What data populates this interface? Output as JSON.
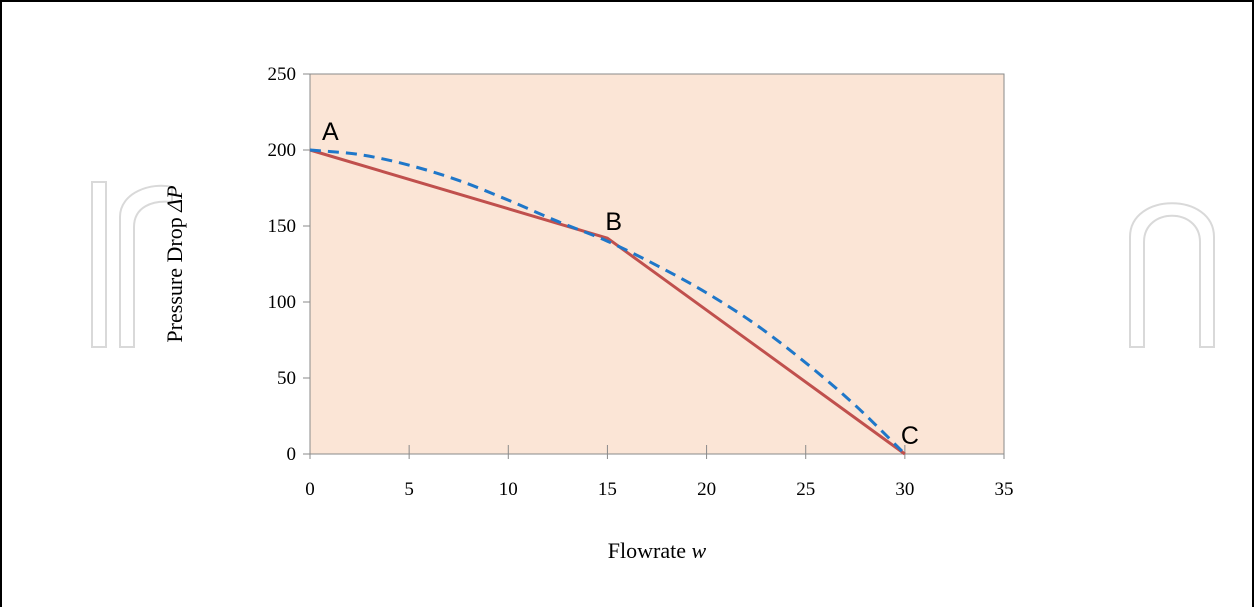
{
  "chart_data": {
    "type": "line",
    "xlabel_text": "Flowrate ",
    "xlabel_var": "w",
    "ylabel_text": "Pressure Drop ",
    "ylabel_var": "ΔP",
    "xlim": [
      0,
      35
    ],
    "ylim": [
      0,
      250
    ],
    "x_ticks": [
      0,
      5,
      10,
      15,
      20,
      25,
      30,
      35
    ],
    "y_ticks": [
      0,
      50,
      100,
      150,
      200,
      250
    ],
    "grid": false,
    "plot_background": "#fbe5d6",
    "series": [
      {
        "style": "solid",
        "color": "#c0504d",
        "points": [
          [
            0,
            200
          ],
          [
            15,
            142
          ],
          [
            30,
            0
          ]
        ]
      },
      {
        "style": "dashed",
        "color": "#1f77c9",
        "points": [
          [
            0,
            200
          ],
          [
            2.5,
            197
          ],
          [
            5,
            190
          ],
          [
            7.5,
            180
          ],
          [
            10,
            167
          ],
          [
            12.5,
            153
          ],
          [
            15,
            140
          ],
          [
            17.5,
            124
          ],
          [
            20,
            106
          ],
          [
            22.5,
            85
          ],
          [
            25,
            60
          ],
          [
            27.5,
            32
          ],
          [
            30,
            0
          ]
        ]
      }
    ],
    "point_labels": [
      {
        "text": "A",
        "x": 0,
        "y": 200
      },
      {
        "text": "B",
        "x": 15,
        "y": 142
      },
      {
        "text": "C",
        "x": 30,
        "y": 0
      }
    ]
  }
}
